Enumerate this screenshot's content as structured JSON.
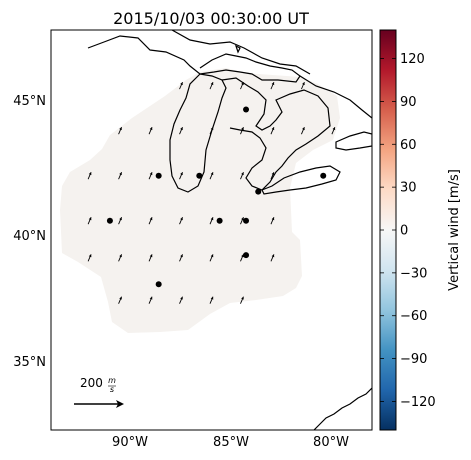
{
  "title": "2015/10/03 00:30:00 UT",
  "lat_labels": [
    "45°N",
    "40°N",
    "35°N"
  ],
  "lon_labels": [
    "90°W",
    "85°W",
    "80°W"
  ],
  "colorbar": {
    "label": "Vertical wind [m/s]",
    "ticks": [
      "120",
      "90",
      "60",
      "30",
      "0",
      "−30",
      "−60",
      "−90",
      "−120"
    ],
    "tick_values": [
      120,
      90,
      60,
      30,
      0,
      -30,
      -60,
      -90,
      -120
    ],
    "range": [
      -140,
      140
    ],
    "colormap": "RdBu_r",
    "stops": [
      "#053061",
      "#2166ac",
      "#4393c3",
      "#92c5de",
      "#d1e5f0",
      "#f7f7f7",
      "#fddbc7",
      "#f4a582",
      "#d6604d",
      "#b2182b",
      "#67001f"
    ]
  },
  "scale_arrow": {
    "label_value": "200",
    "label_unit_num": "m",
    "label_unit_den": "s"
  },
  "chart_data": {
    "type": "map",
    "lon_range": [
      -93.8,
      -78.0
    ],
    "lat_range": [
      32.5,
      47.6
    ],
    "field_fill_color": "#f5f2ef",
    "sites": [
      {
        "lon": -84.2,
        "lat": 44.6
      },
      {
        "lon": -88.5,
        "lat": 42.1
      },
      {
        "lon": -86.5,
        "lat": 42.1
      },
      {
        "lon": -80.4,
        "lat": 42.1
      },
      {
        "lon": -83.6,
        "lat": 41.5
      },
      {
        "lon": -90.9,
        "lat": 40.4
      },
      {
        "lon": -85.5,
        "lat": 40.4
      },
      {
        "lon": -84.2,
        "lat": 40.4
      },
      {
        "lon": -84.2,
        "lat": 39.1
      },
      {
        "lon": -88.5,
        "lat": 38.0
      }
    ],
    "wind_vector_grid": {
      "lons": [
        -93.4,
        -91.9,
        -90.4,
        -88.9,
        -87.4,
        -85.9,
        -84.4,
        -82.9,
        -81.4,
        -79.9,
        -78.5
      ],
      "lats": [
        47.0,
        45.5,
        43.8,
        42.1,
        40.4,
        39.0,
        37.4,
        35.8,
        34.4
      ],
      "u_ms": 6,
      "v_ms": 14
    }
  }
}
